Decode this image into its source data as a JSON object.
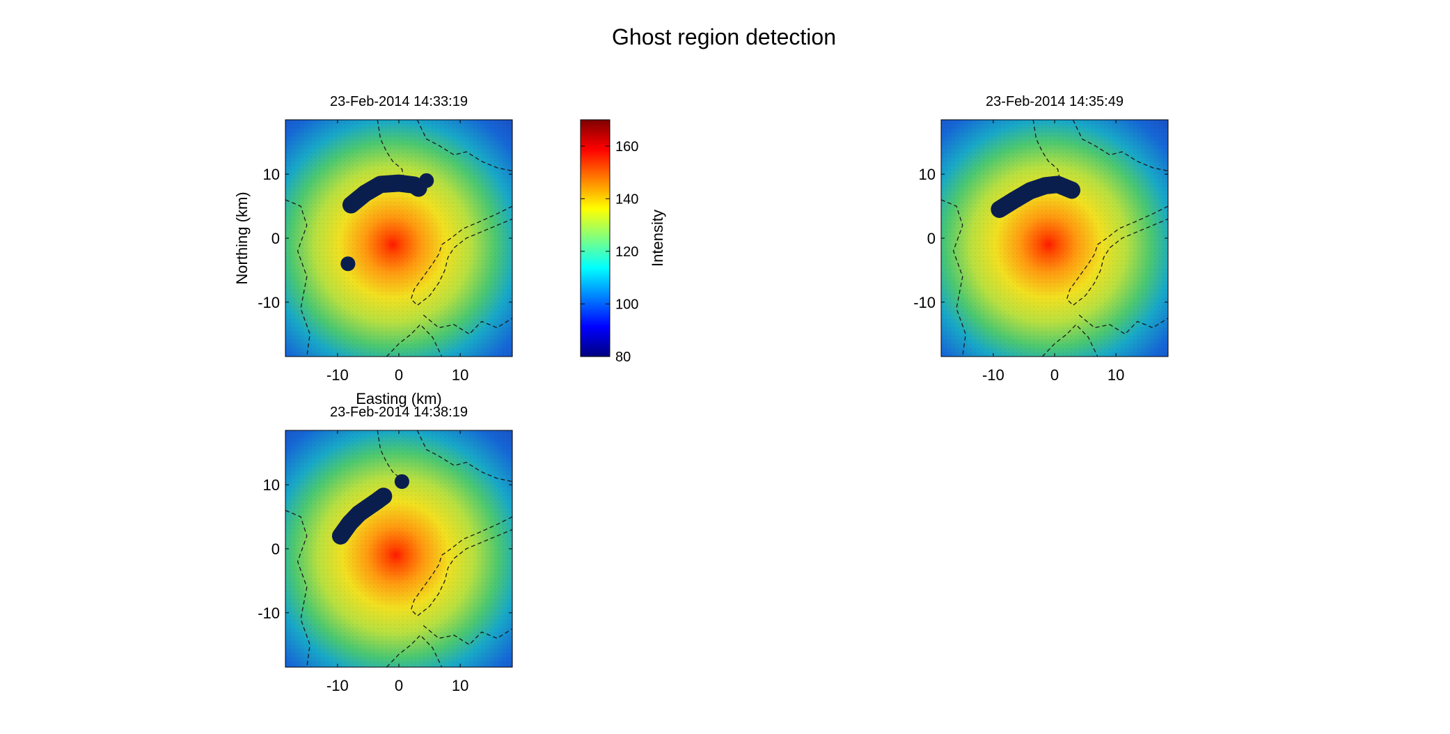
{
  "figure": {
    "title": "Ghost region detection"
  },
  "chart_data": [
    {
      "type": "heatmap",
      "title": "23-Feb-2014 14:33:19",
      "xlabel": "Easting (km)",
      "ylabel": "Northing (km)",
      "xlim": [
        -18.5,
        18.5
      ],
      "ylim": [
        -18.5,
        18.5
      ],
      "xticks": [
        -10,
        0,
        10
      ],
      "yticks": [
        -10,
        0,
        10
      ],
      "colormap": "jet",
      "peak_center": [
        -1.0,
        -1.0
      ],
      "ghost_regions": [
        {
          "polyline": [
            [
              -7.8,
              5.2
            ],
            [
              -5.5,
              7.0
            ],
            [
              -3.0,
              8.4
            ],
            [
              0,
              8.6
            ],
            [
              2.5,
              8.3
            ],
            [
              3.2,
              7.8
            ]
          ],
          "radius": 1.4
        },
        {
          "polyline": [
            [
              4.5,
              9.0
            ]
          ],
          "radius": 1.2
        },
        {
          "polyline": [
            [
              -8.3,
              -4.0
            ]
          ],
          "radius": 1.2
        }
      ],
      "coastlines": [
        [
          [
            -3.5,
            18.5
          ],
          [
            -3.0,
            15.5
          ],
          [
            -2.0,
            13.5
          ],
          [
            -1.0,
            12.0
          ],
          [
            0.5,
            10.8
          ],
          [
            0.8,
            9.5
          ]
        ],
        [
          [
            3.0,
            18.5
          ],
          [
            4.5,
            15.5
          ],
          [
            6.5,
            14.5
          ],
          [
            9.0,
            13.0
          ],
          [
            11.0,
            13.5
          ],
          [
            13.5,
            12.0
          ],
          [
            16.0,
            11.0
          ],
          [
            18.5,
            10.5
          ]
        ],
        [
          [
            18.5,
            5.0
          ],
          [
            16.0,
            3.8
          ],
          [
            13.0,
            2.5
          ],
          [
            10.5,
            1.5
          ],
          [
            8.5,
            0.0
          ],
          [
            7.0,
            -1.0
          ],
          [
            6.5,
            -2.5
          ],
          [
            5.5,
            -4.0
          ],
          [
            4.0,
            -6.0
          ],
          [
            2.5,
            -8.0
          ],
          [
            2.0,
            -9.5
          ],
          [
            3.0,
            -10.5
          ],
          [
            5.0,
            -9.0
          ],
          [
            6.5,
            -7.0
          ],
          [
            7.5,
            -5.0
          ],
          [
            8.0,
            -3.0
          ],
          [
            9.0,
            -1.5
          ],
          [
            11.0,
            0.0
          ],
          [
            13.5,
            1.0
          ],
          [
            16.0,
            2.0
          ],
          [
            18.5,
            3.0
          ]
        ],
        [
          [
            4.0,
            -12.0
          ],
          [
            6.5,
            -14.0
          ],
          [
            9.0,
            -13.5
          ],
          [
            11.5,
            -15.0
          ],
          [
            13.5,
            -13.0
          ],
          [
            16.0,
            -14.0
          ],
          [
            18.5,
            -12.5
          ]
        ],
        [
          [
            -18.5,
            6.0
          ],
          [
            -16.0,
            5.0
          ],
          [
            -15.0,
            2.0
          ],
          [
            -16.5,
            -2.0
          ],
          [
            -15.0,
            -6.0
          ],
          [
            -16.0,
            -11.0
          ],
          [
            -14.5,
            -15.0
          ],
          [
            -15.0,
            -18.5
          ]
        ],
        [
          [
            -2.0,
            -18.5
          ],
          [
            0.0,
            -16.5
          ],
          [
            2.0,
            -15.0
          ],
          [
            3.5,
            -13.5
          ],
          [
            5.5,
            -15.5
          ],
          [
            7.0,
            -18.5
          ]
        ]
      ]
    },
    {
      "type": "heatmap",
      "title": "23-Feb-2014 14:35:49",
      "xlabel": "",
      "ylabel": "",
      "xlim": [
        -18.5,
        18.5
      ],
      "ylim": [
        -18.5,
        18.5
      ],
      "xticks": [
        -10,
        0,
        10
      ],
      "yticks": [
        -10,
        0,
        10
      ],
      "colormap": "jet",
      "peak_center": [
        -1.0,
        -1.0
      ],
      "ghost_regions": [
        {
          "polyline": [
            [
              -9.0,
              4.5
            ],
            [
              -6.5,
              6.0
            ],
            [
              -4.0,
              7.4
            ],
            [
              -1.5,
              8.2
            ],
            [
              0.5,
              8.4
            ],
            [
              2.8,
              7.5
            ]
          ],
          "radius": 1.4
        }
      ],
      "coastlines": [
        [
          [
            -3.5,
            18.5
          ],
          [
            -3.0,
            15.5
          ],
          [
            -2.0,
            13.5
          ],
          [
            -1.0,
            12.0
          ],
          [
            0.5,
            10.8
          ],
          [
            0.8,
            9.5
          ]
        ],
        [
          [
            3.0,
            18.5
          ],
          [
            4.5,
            15.5
          ],
          [
            6.5,
            14.5
          ],
          [
            9.0,
            13.0
          ],
          [
            11.0,
            13.5
          ],
          [
            13.5,
            12.0
          ],
          [
            16.0,
            11.0
          ],
          [
            18.5,
            10.5
          ]
        ],
        [
          [
            18.5,
            5.0
          ],
          [
            16.0,
            3.8
          ],
          [
            13.0,
            2.5
          ],
          [
            10.5,
            1.5
          ],
          [
            8.5,
            0.0
          ],
          [
            7.0,
            -1.0
          ],
          [
            6.5,
            -2.5
          ],
          [
            5.5,
            -4.0
          ],
          [
            4.0,
            -6.0
          ],
          [
            2.5,
            -8.0
          ],
          [
            2.0,
            -9.5
          ],
          [
            3.0,
            -10.5
          ],
          [
            5.0,
            -9.0
          ],
          [
            6.5,
            -7.0
          ],
          [
            7.5,
            -5.0
          ],
          [
            8.0,
            -3.0
          ],
          [
            9.0,
            -1.5
          ],
          [
            11.0,
            0.0
          ],
          [
            13.5,
            1.0
          ],
          [
            16.0,
            2.0
          ],
          [
            18.5,
            3.0
          ]
        ],
        [
          [
            4.0,
            -12.0
          ],
          [
            6.5,
            -14.0
          ],
          [
            9.0,
            -13.5
          ],
          [
            11.5,
            -15.0
          ],
          [
            13.5,
            -13.0
          ],
          [
            16.0,
            -14.0
          ],
          [
            18.5,
            -12.5
          ]
        ],
        [
          [
            -18.5,
            6.0
          ],
          [
            -16.0,
            5.0
          ],
          [
            -15.0,
            2.0
          ],
          [
            -16.5,
            -2.0
          ],
          [
            -15.0,
            -6.0
          ],
          [
            -16.0,
            -11.0
          ],
          [
            -14.5,
            -15.0
          ],
          [
            -15.0,
            -18.5
          ]
        ],
        [
          [
            -2.0,
            -18.5
          ],
          [
            0.0,
            -16.5
          ],
          [
            2.0,
            -15.0
          ],
          [
            3.5,
            -13.5
          ],
          [
            5.5,
            -15.5
          ],
          [
            7.0,
            -18.5
          ]
        ]
      ]
    },
    {
      "type": "heatmap",
      "title": "23-Feb-2014 14:38:19",
      "xlabel": "",
      "ylabel": "",
      "xlim": [
        -18.5,
        18.5
      ],
      "ylim": [
        -18.5,
        18.5
      ],
      "xticks": [
        -10,
        0,
        10
      ],
      "yticks": [
        -10,
        0,
        10
      ],
      "colormap": "jet",
      "peak_center": [
        -0.5,
        -1.0
      ],
      "ghost_regions": [
        {
          "polyline": [
            [
              -9.5,
              2.0
            ],
            [
              -8.0,
              4.0
            ],
            [
              -6.5,
              5.5
            ],
            [
              -5.0,
              6.5
            ],
            [
              -3.5,
              7.5
            ],
            [
              -2.5,
              8.2
            ]
          ],
          "radius": 1.4
        },
        {
          "polyline": [
            [
              0.5,
              10.5
            ]
          ],
          "radius": 1.2
        }
      ],
      "coastlines": [
        [
          [
            -3.5,
            18.5
          ],
          [
            -3.0,
            15.5
          ],
          [
            -2.0,
            13.5
          ],
          [
            -1.0,
            12.0
          ],
          [
            0.5,
            10.8
          ],
          [
            0.8,
            9.5
          ]
        ],
        [
          [
            3.0,
            18.5
          ],
          [
            4.5,
            15.5
          ],
          [
            6.5,
            14.5
          ],
          [
            9.0,
            13.0
          ],
          [
            11.0,
            13.5
          ],
          [
            13.5,
            12.0
          ],
          [
            16.0,
            11.0
          ],
          [
            18.5,
            10.5
          ]
        ],
        [
          [
            18.5,
            5.0
          ],
          [
            16.0,
            3.8
          ],
          [
            13.0,
            2.5
          ],
          [
            10.5,
            1.5
          ],
          [
            8.5,
            0.0
          ],
          [
            7.0,
            -1.0
          ],
          [
            6.5,
            -2.5
          ],
          [
            5.5,
            -4.0
          ],
          [
            4.0,
            -6.0
          ],
          [
            2.5,
            -8.0
          ],
          [
            2.0,
            -9.5
          ],
          [
            3.0,
            -10.5
          ],
          [
            5.0,
            -9.0
          ],
          [
            6.5,
            -7.0
          ],
          [
            7.5,
            -5.0
          ],
          [
            8.0,
            -3.0
          ],
          [
            9.0,
            -1.5
          ],
          [
            11.0,
            0.0
          ],
          [
            13.5,
            1.0
          ],
          [
            16.0,
            2.0
          ],
          [
            18.5,
            3.0
          ]
        ],
        [
          [
            4.0,
            -12.0
          ],
          [
            6.5,
            -14.0
          ],
          [
            9.0,
            -13.5
          ],
          [
            11.5,
            -15.0
          ],
          [
            13.5,
            -13.0
          ],
          [
            16.0,
            -14.0
          ],
          [
            18.5,
            -12.5
          ]
        ],
        [
          [
            -18.5,
            6.0
          ],
          [
            -16.0,
            5.0
          ],
          [
            -15.0,
            2.0
          ],
          [
            -16.5,
            -2.0
          ],
          [
            -15.0,
            -6.0
          ],
          [
            -16.0,
            -11.0
          ],
          [
            -14.5,
            -15.0
          ],
          [
            -15.0,
            -18.5
          ]
        ],
        [
          [
            -2.0,
            -18.5
          ],
          [
            0.0,
            -16.5
          ],
          [
            2.0,
            -15.0
          ],
          [
            3.5,
            -13.5
          ],
          [
            5.5,
            -15.5
          ],
          [
            7.0,
            -18.5
          ]
        ]
      ]
    }
  ],
  "colorbar": {
    "label": "Intensity",
    "range": [
      80,
      170
    ],
    "ticks": [
      80,
      100,
      120,
      140,
      160
    ]
  },
  "colors": {
    "ghost_region": "#0a1e4e",
    "coastline": "#1a1a1a",
    "background": "#ffffff"
  }
}
